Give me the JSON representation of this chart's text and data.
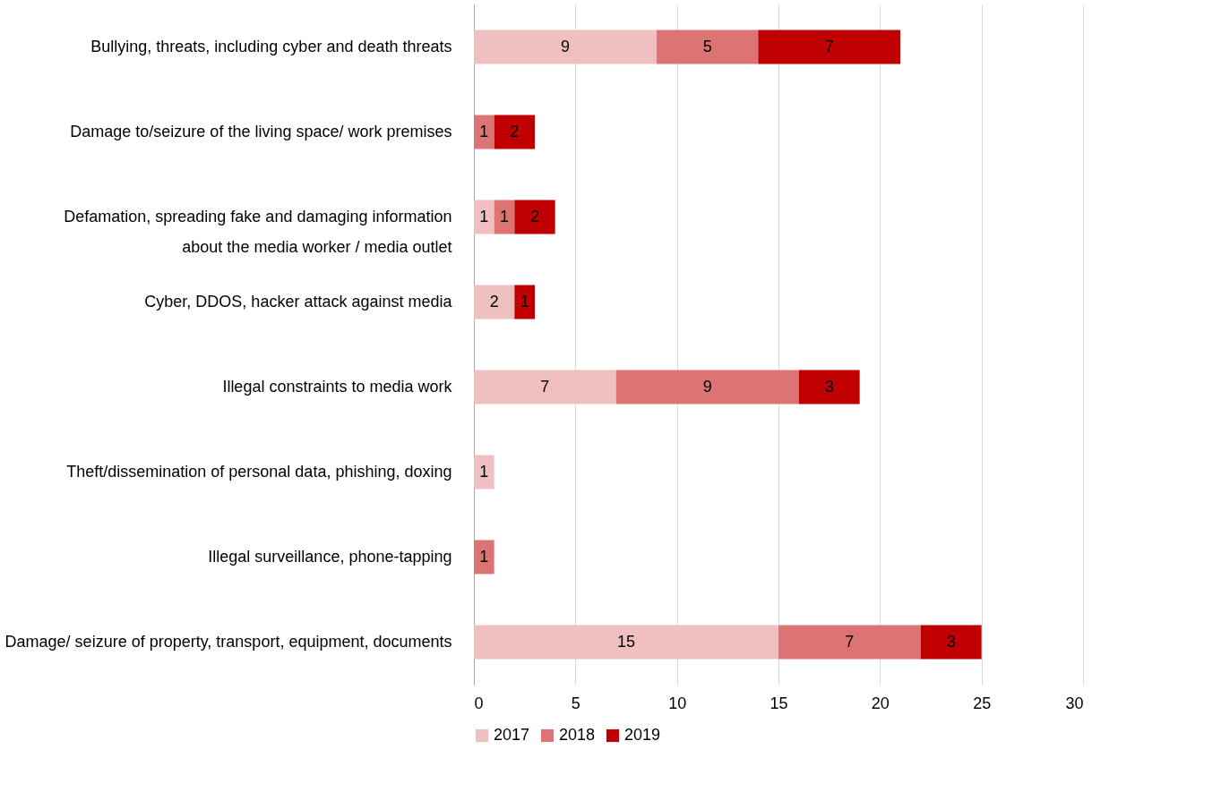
{
  "chart_data": {
    "type": "bar",
    "orientation": "horizontal",
    "stacked": true,
    "data_labels": true,
    "grid": "x",
    "legend": "bottom",
    "categories": [
      "Bullying, threats, including cyber and death threats",
      "Damage to/seizure of the living space/ work premises",
      "Defamation, spreading fake and damaging information\nabout the media worker / media outlet",
      "Cyber, DDOS, hacker attack against media",
      "Illegal constraints to media work",
      "Theft/dissemination of personal data, phishing, doxing",
      "Illegal surveillance, phone-tapping",
      "Damage/ seizure of property, transport, equipment, documents"
    ],
    "series": [
      {
        "name": "2017",
        "color": "#f0c0c0",
        "values": [
          9,
          null,
          1,
          2,
          7,
          1,
          null,
          15
        ]
      },
      {
        "name": "2018",
        "color": "#dc7474",
        "values": [
          5,
          1,
          1,
          null,
          9,
          null,
          1,
          7
        ]
      },
      {
        "name": "2019",
        "color": "#c00000",
        "values": [
          7,
          2,
          2,
          1,
          3,
          null,
          null,
          3
        ]
      }
    ],
    "xlim": [
      0,
      30
    ],
    "xticks": [
      0,
      5,
      10,
      15,
      20,
      25,
      30
    ]
  }
}
